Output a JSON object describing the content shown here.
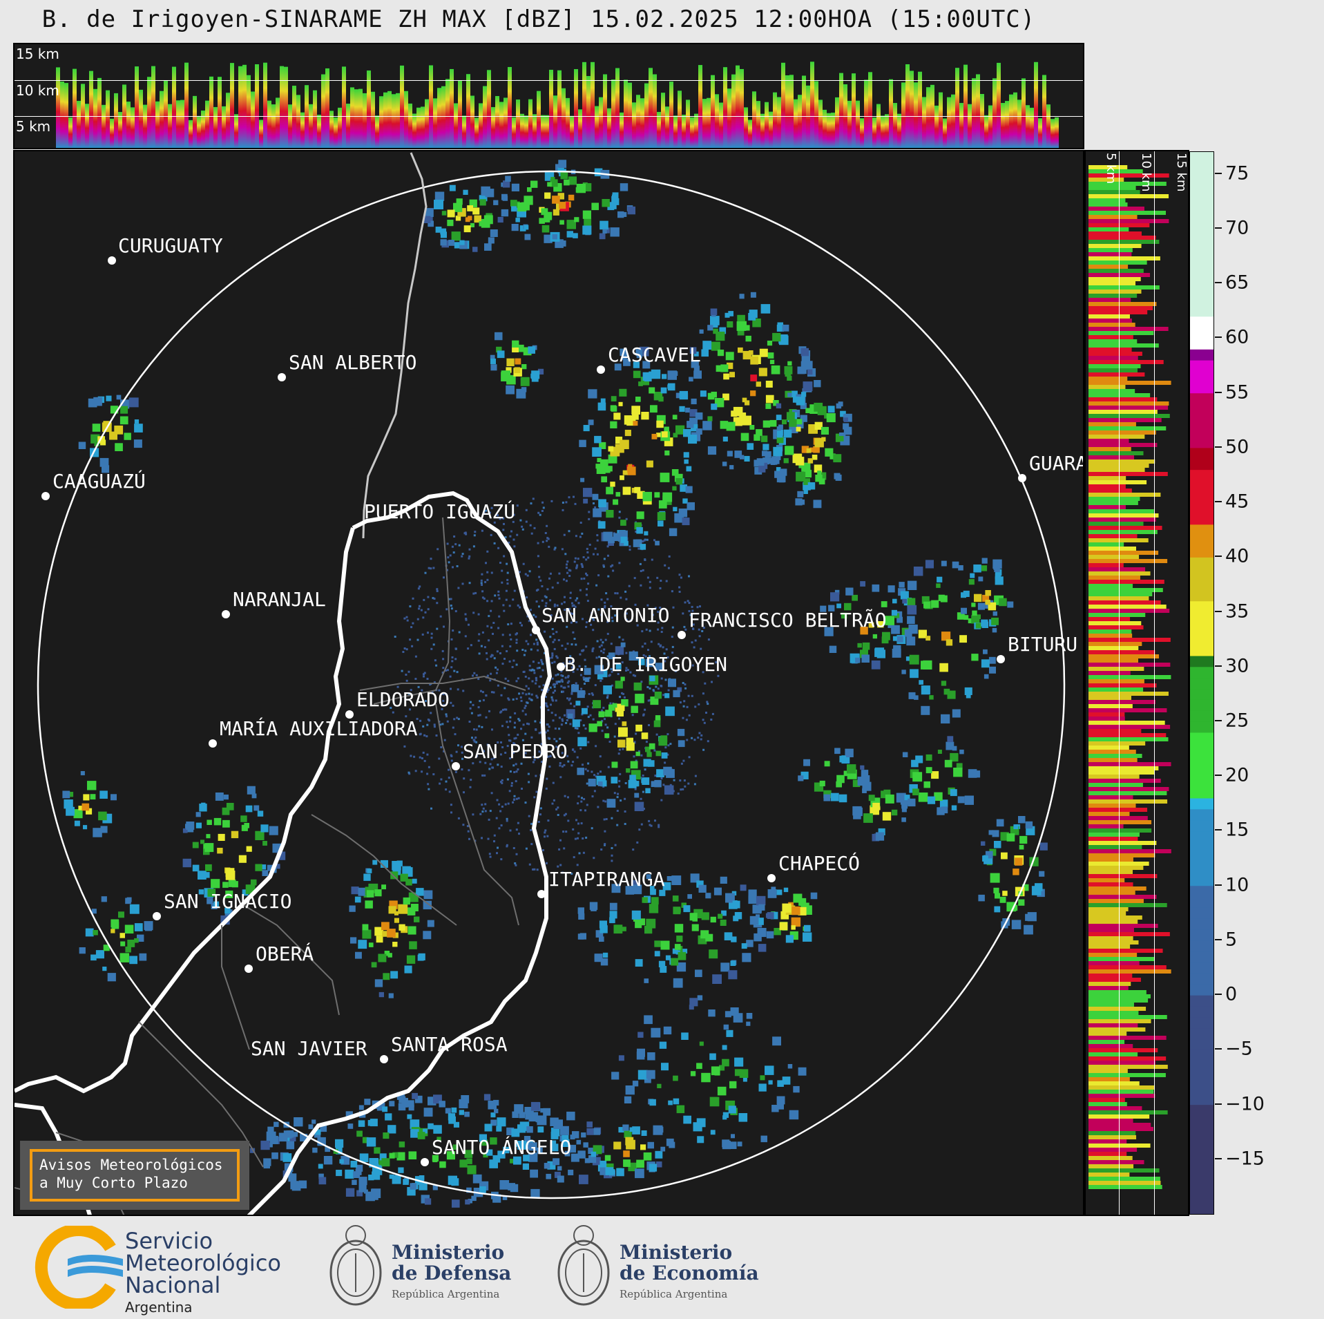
{
  "title": "B. de Irigoyen-SINARAME ZH MAX [dBZ] 15.02.2025 12:00HOA (15:00UTC)",
  "top_panel": {
    "altitude_labels": [
      "15 km",
      "10 km",
      "5 km"
    ]
  },
  "side_panel": {
    "altitude_labels": [
      "5 km",
      "10 km",
      "15 km"
    ]
  },
  "cities": [
    {
      "name": "CURUGUATY"
    },
    {
      "name": "SAN ALBERTO"
    },
    {
      "name": "CAAGUAZÚ"
    },
    {
      "name": "CASCAVEL"
    },
    {
      "name": "GUARA"
    },
    {
      "name": "PUERTO IGUAZÚ"
    },
    {
      "name": "NARANJAL"
    },
    {
      "name": "SAN ANTONIO"
    },
    {
      "name": "FRANCISCO BELTRÃO"
    },
    {
      "name": "BITURU"
    },
    {
      "name": "B. DE IRIGOYEN"
    },
    {
      "name": "ELDORADO"
    },
    {
      "name": "MARÍA AUXILIADORA"
    },
    {
      "name": "SAN PEDRO"
    },
    {
      "name": "ITAPIRANGA"
    },
    {
      "name": "CHAPECÓ"
    },
    {
      "name": "SAN IGNACIO"
    },
    {
      "name": "OBERÁ"
    },
    {
      "name": "SAN JAVIER"
    },
    {
      "name": "SANTA ROSA"
    },
    {
      "name": "SANTO ÁNGELO"
    }
  ],
  "colorbar": {
    "unit": "dBZ",
    "ticks": [
      "75",
      "70",
      "65",
      "60",
      "55",
      "50",
      "45",
      "40",
      "35",
      "30",
      "25",
      "20",
      "15",
      "10",
      "5",
      "0",
      "−5",
      "−10",
      "−15"
    ],
    "range": [
      -20,
      77
    ]
  },
  "warning_box": {
    "line1": "Avisos Meteorológicos",
    "line2": "a Muy Corto Plazo"
  },
  "footer": {
    "smn_line1": "Servicio",
    "smn_line2": "Meteorológico",
    "smn_line3": "Nacional",
    "smn_country": "Argentina",
    "defensa_line1": "Ministerio",
    "defensa_line2": "de Defensa",
    "defensa_sub": "República Argentina",
    "economia_line1": "Ministerio",
    "economia_line2": "de Economía",
    "economia_sub": "República Argentina"
  }
}
